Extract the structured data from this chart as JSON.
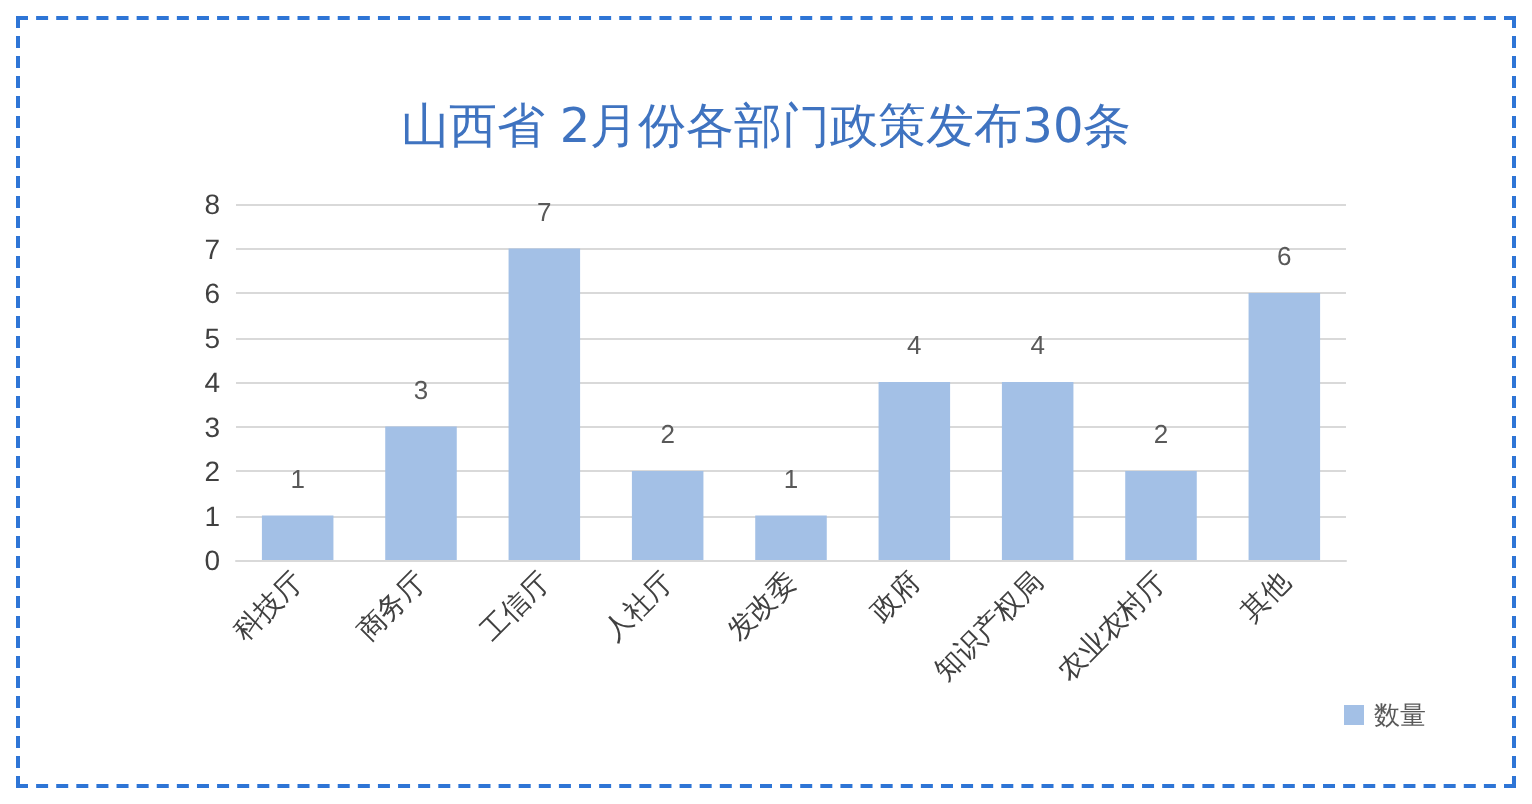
{
  "chart_data": {
    "type": "bar",
    "title": "山西省 2月份各部门政策发布30条",
    "categories": [
      "科技厅",
      "商务厅",
      "工信厅",
      "人社厅",
      "发改委",
      "政府",
      "知识产权局",
      "农业农村厅",
      "其他"
    ],
    "series": [
      {
        "name": "数量",
        "color": "#a3c0e6",
        "values": [
          1,
          3,
          7,
          2,
          1,
          4,
          4,
          2,
          6
        ]
      }
    ],
    "ylim": [
      0,
      8
    ],
    "yticks": [
      0,
      1,
      2,
      3,
      4,
      5,
      6,
      7,
      8
    ],
    "grid": "y",
    "data_labels": true,
    "legend": "bottom right"
  }
}
